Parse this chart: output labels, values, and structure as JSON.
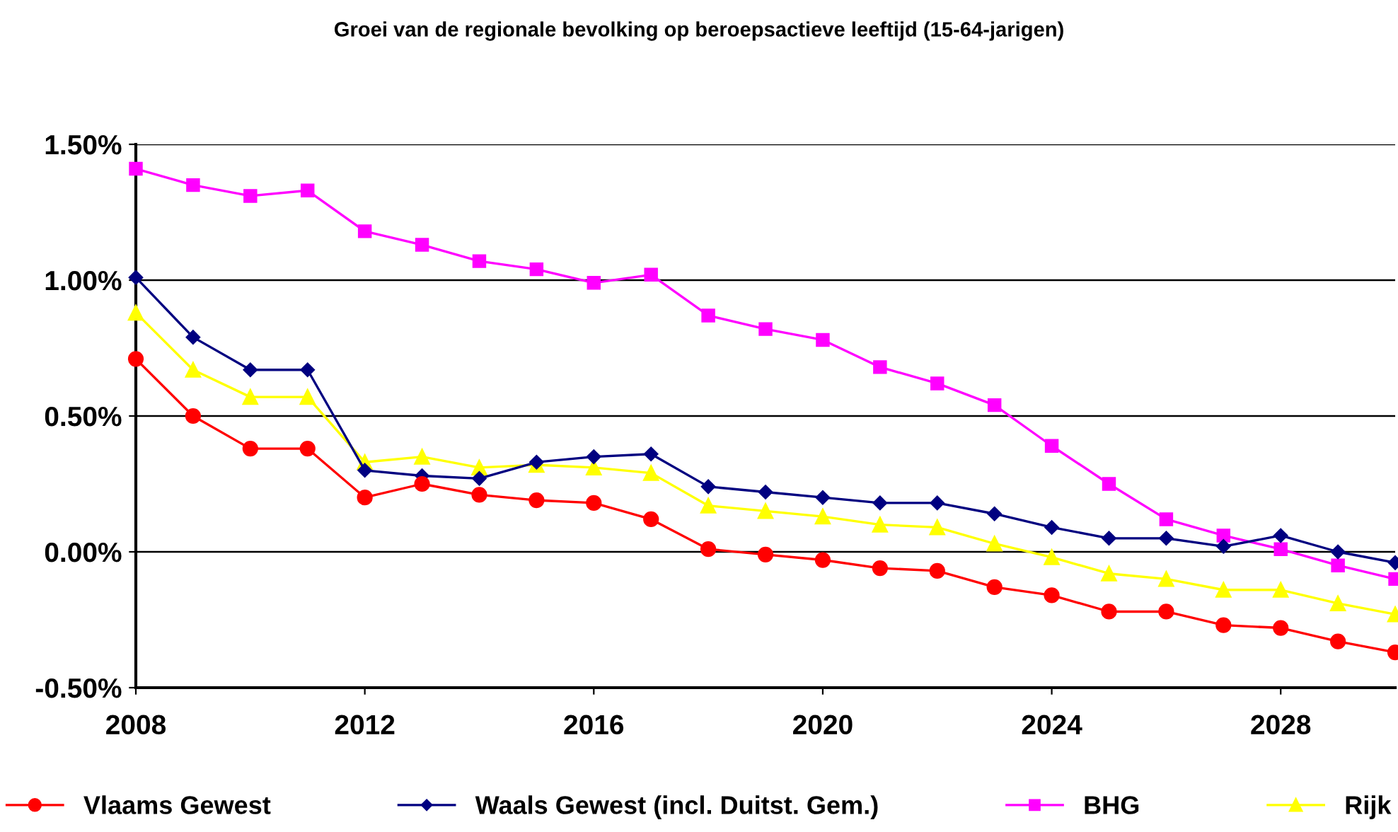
{
  "chart_data": {
    "type": "line",
    "title": "Groei van de regionale bevolking op beroepsactieve leeftijd (15-64-jarigen)",
    "x": [
      2008,
      2009,
      2010,
      2011,
      2012,
      2013,
      2014,
      2015,
      2016,
      2017,
      2018,
      2019,
      2020,
      2021,
      2022,
      2023,
      2024,
      2025,
      2026,
      2027,
      2028,
      2029,
      2030
    ],
    "series": [
      {
        "name": "Vlaams Gewest",
        "color": "#ff0000",
        "marker": "circle",
        "values": [
          0.71,
          0.5,
          0.38,
          0.38,
          0.2,
          0.25,
          0.21,
          0.19,
          0.18,
          0.12,
          0.01,
          -0.01,
          -0.03,
          -0.06,
          -0.07,
          -0.13,
          -0.16,
          -0.22,
          -0.22,
          -0.27,
          -0.28,
          -0.33,
          -0.37
        ]
      },
      {
        "name": "Waals Gewest (incl. Duitst. Gem.)",
        "color": "#000080",
        "marker": "diamond",
        "values": [
          1.01,
          0.79,
          0.67,
          0.67,
          0.3,
          0.28,
          0.27,
          0.33,
          0.35,
          0.36,
          0.24,
          0.22,
          0.2,
          0.18,
          0.18,
          0.14,
          0.09,
          0.05,
          0.05,
          0.02,
          0.06,
          0.0,
          -0.04
        ]
      },
      {
        "name": "BHG",
        "color": "#ff00ff",
        "marker": "square",
        "values": [
          1.41,
          1.35,
          1.31,
          1.33,
          1.18,
          1.13,
          1.07,
          1.04,
          0.99,
          1.02,
          0.87,
          0.82,
          0.78,
          0.68,
          0.62,
          0.54,
          0.39,
          0.25,
          0.12,
          0.06,
          0.01,
          -0.05,
          -0.1
        ]
      },
      {
        "name": "Rijk",
        "color": "#ffff00",
        "marker": "triangle",
        "values": [
          0.88,
          0.67,
          0.57,
          0.57,
          0.33,
          0.35,
          0.31,
          0.32,
          0.31,
          0.29,
          0.17,
          0.15,
          0.13,
          0.1,
          0.09,
          0.03,
          -0.02,
          -0.08,
          -0.1,
          -0.14,
          -0.14,
          -0.19,
          -0.23
        ]
      }
    ],
    "xlim": [
      2008,
      2030
    ],
    "xticks": [
      2008,
      2012,
      2016,
      2020,
      2024,
      2028
    ],
    "ylim": [
      -0.5,
      1.5
    ],
    "yticks": [
      {
        "value": -0.5,
        "label": "-0.50%"
      },
      {
        "value": 0,
        "label": "0.00%"
      },
      {
        "value": 0.5,
        "label": "0.50%"
      },
      {
        "value": 1.0,
        "label": "1.00%"
      },
      {
        "value": 1.5,
        "label": "1.50%"
      }
    ],
    "grid": "y",
    "legend": "bottom",
    "line_style": "solid"
  }
}
